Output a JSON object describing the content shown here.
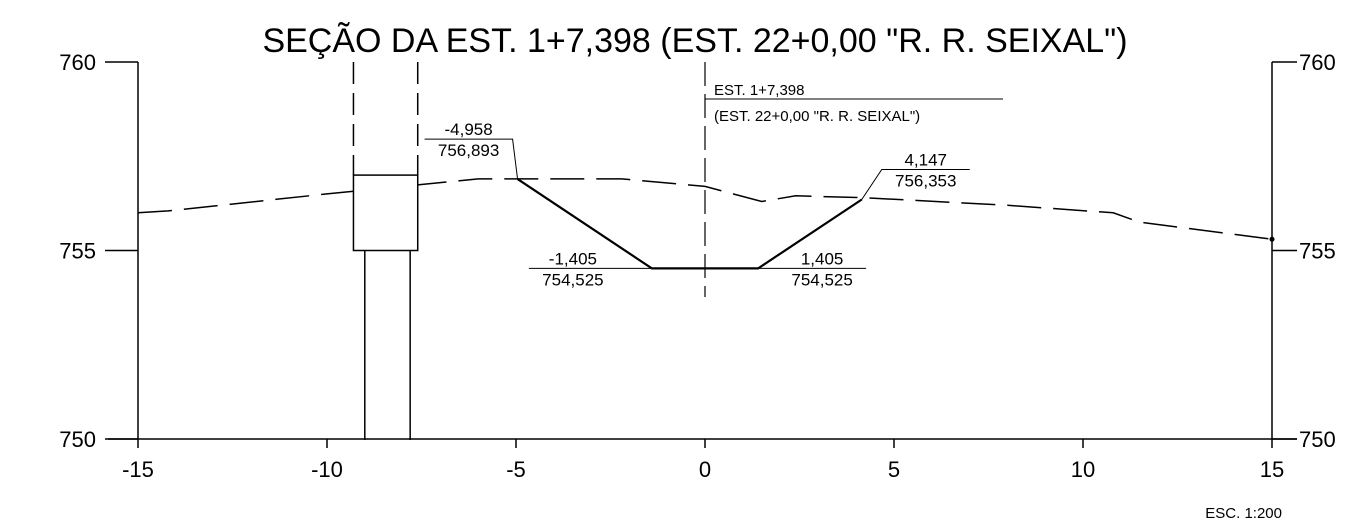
{
  "title": "SEÇÃO DA EST. 1+7,398 (EST. 22+0,00 \"R. R. SEIXAL\")",
  "scale_note": "ESC. 1:200",
  "centerline": {
    "line1": "EST. 1+7,398",
    "line2": "(EST. 22+0,00 \"R. R. SEIXAL\")"
  },
  "chart_data": {
    "type": "line",
    "title": "SEÇÃO DA EST. 1+7,398 (EST. 22+0,00 \"R. R. SEIXAL\")",
    "xlim": [
      -15,
      15
    ],
    "ylim": [
      750,
      760
    ],
    "x_ticks": [
      -15,
      -10,
      -5,
      0,
      5,
      10,
      15
    ],
    "x_tick_labels": [
      "-15",
      "-10",
      "-5",
      "0",
      "5",
      "10",
      "15"
    ],
    "y_ticks": [
      750,
      755,
      760
    ],
    "y_tick_labels_left": [
      "750",
      "755",
      "760"
    ],
    "y_tick_labels_right": [
      "750",
      "755",
      "760"
    ],
    "grid": false,
    "series": [
      {
        "style": "dashed",
        "points": [
          [
            -15,
            756.0
          ],
          [
            -14.2,
            756.05
          ],
          [
            -10,
            756.5
          ],
          [
            -6,
            756.9
          ],
          [
            -2.2,
            756.9
          ],
          [
            0,
            756.7
          ],
          [
            1.5,
            756.3
          ],
          [
            2.4,
            756.45
          ],
          [
            4.2,
            756.4
          ],
          [
            8,
            756.2
          ],
          [
            10.8,
            756.0
          ],
          [
            11.5,
            755.75
          ],
          [
            15,
            755.3
          ]
        ]
      },
      {
        "style": "solid",
        "points": [
          [
            -4.958,
            756.893
          ],
          [
            -1.405,
            754.525
          ],
          [
            1.405,
            754.525
          ],
          [
            4.147,
            756.353
          ]
        ]
      }
    ],
    "annotations": [
      {
        "x": -4.958,
        "y": 756.893,
        "offset_label": "-4,958",
        "elevation_label": "756,893"
      },
      {
        "x": -1.405,
        "y": 754.525,
        "offset_label": "-1,405",
        "elevation_label": "754,525"
      },
      {
        "x": 1.405,
        "y": 754.525,
        "offset_label": "1,405",
        "elevation_label": "754,525"
      },
      {
        "x": 4.147,
        "y": 756.353,
        "offset_label": "4,147",
        "elevation_label": "756,353"
      }
    ],
    "structures": [
      {
        "name": "culvert",
        "x_range": [
          -9.3,
          -7.6
        ],
        "y_range": [
          755,
          757
        ]
      },
      {
        "name": "pipe",
        "x_range": [
          -9.0,
          -7.8
        ],
        "y_range": [
          750,
          755
        ]
      },
      {
        "name": "dashed-projection",
        "x": [
          -9.3,
          -7.6
        ],
        "y_range": [
          757,
          760
        ]
      }
    ]
  }
}
